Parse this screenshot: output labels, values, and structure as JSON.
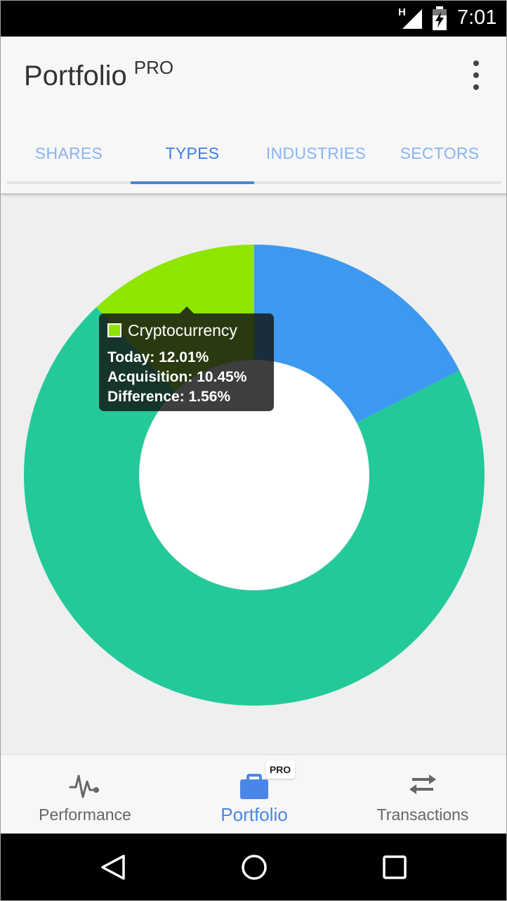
{
  "status_bar": {
    "network": "H",
    "time": "7:01"
  },
  "app_bar": {
    "title": "Portfolio",
    "title_badge": "PRO"
  },
  "tabs": [
    {
      "label": "SHARES",
      "active": false
    },
    {
      "label": "TYPES",
      "active": true
    },
    {
      "label": "INDUSTRIES",
      "active": false
    },
    {
      "label": "SECTORS",
      "active": false
    }
  ],
  "chart_data": {
    "type": "pie",
    "variant": "donut",
    "slices": [
      {
        "value": 17.5,
        "color": "#3d99ef"
      },
      {
        "value": 70.49,
        "color": "#23c999"
      },
      {
        "value": 12.01,
        "color": "#8fe600"
      }
    ],
    "tooltip": {
      "name": "Cryptocurrency",
      "color": "#8fe600",
      "today": "Today: 12.01%",
      "acquisition": "Acquisition: 10.45%",
      "difference": "Difference: 1.56%"
    }
  },
  "bottom_nav": [
    {
      "label": "Performance",
      "icon": "pulse-icon",
      "active": false
    },
    {
      "label": "Portfolio",
      "icon": "briefcase-icon",
      "active": true,
      "badge": "PRO"
    },
    {
      "label": "Transactions",
      "icon": "swap-arrows-icon",
      "active": false
    }
  ],
  "colors": {
    "accent": "#4a86e8",
    "tab_inactive": "#8ab4f0"
  }
}
